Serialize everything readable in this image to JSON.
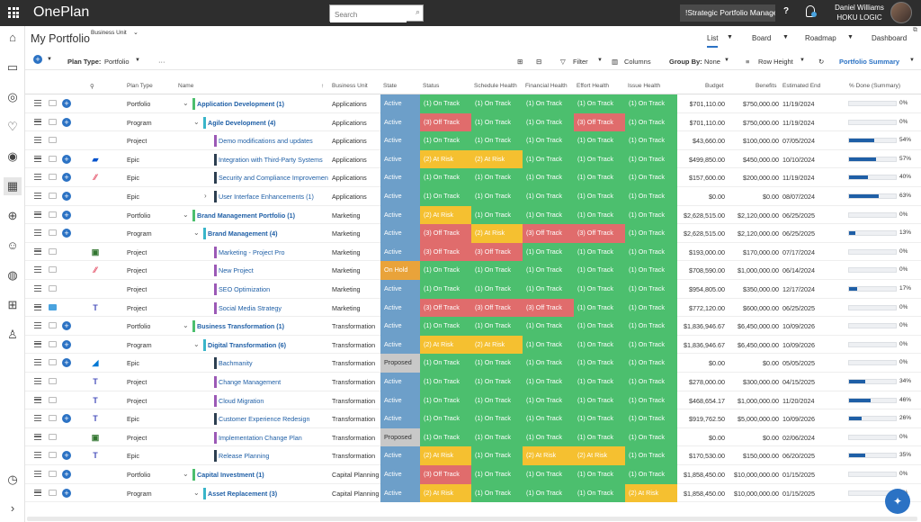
{
  "app": {
    "brand": "OnePlan"
  },
  "search": {
    "placeholder": "Search"
  },
  "role": {
    "label": "!Strategic Portfolio Manager"
  },
  "help_label": "?",
  "user": {
    "name": "Daniel Williams",
    "org": "HOKU LOGIC"
  },
  "header": {
    "title": "My Portfolio",
    "business_unit_label": "Business Unit",
    "views": [
      {
        "label": "List",
        "active": true
      },
      {
        "label": "Board",
        "active": false
      },
      {
        "label": "Roadmap",
        "active": false
      },
      {
        "label": "Dashboard",
        "active": false
      }
    ]
  },
  "toolbar": {
    "plan_type_label": "Plan Type:",
    "plan_type_value": "Portfolio",
    "more": "···",
    "filter": "Filter",
    "columns": "Columns",
    "group_by_label": "Group By:",
    "group_by_value": "None",
    "row_height": "Row Height",
    "summary": "Portfolio Summary"
  },
  "columns": [
    "Plan Type",
    "Name",
    "Business Unit",
    "State",
    "Status",
    "Schedule Health",
    "Financial Health",
    "Effort Health",
    "Issue Health",
    "Budget",
    "Benefits",
    "Estimated End",
    "% Done (Summary)"
  ],
  "colors": {
    "Active": "#6d9fc9",
    "On Hold": "#e9a33a",
    "Proposed": "#c8c8c8",
    "On Track": "#4cbf6e",
    "At Risk": "#f5c030",
    "Off Track": "#e06c6c",
    "accent": "#2b72c4"
  },
  "rows": [
    {
      "ptype": "Portfolio",
      "level": 0,
      "chev": "v",
      "name": "Application Development (1)",
      "bar": "#4cbf6e",
      "bu": "Applications",
      "state": "Active",
      "status": "(1) On Track",
      "sched": "(1) On Track",
      "fin": "(1) On Track",
      "effort": "(1) On Track",
      "issue": "(1) On Track",
      "budget": "$701,110.00",
      "benefits": "$750,000.00",
      "end": "11/19/2024",
      "pct": 0,
      "pct_label": "0%",
      "add": true,
      "logo": ""
    },
    {
      "ptype": "Program",
      "level": 1,
      "chev": "v",
      "name": "Agile Development (4)",
      "bar": "#39b5c9",
      "bu": "Applications",
      "state": "Active",
      "status": "(3) Off Track",
      "sched": "(1) On Track",
      "fin": "(1) On Track",
      "effort": "(3) Off Track",
      "issue": "(1) On Track",
      "budget": "$701,110.00",
      "benefits": "$750,000.00",
      "end": "11/19/2024",
      "pct": 0,
      "pct_label": "0%",
      "add": true,
      "logo": ""
    },
    {
      "ptype": "Project",
      "level": 2,
      "chev": "",
      "name": "Demo modifications and updates",
      "bar": "#9b59b6",
      "bu": "Applications",
      "state": "Active",
      "status": "(1) On Track",
      "sched": "(1) On Track",
      "fin": "(1) On Track",
      "effort": "(1) On Track",
      "issue": "(1) On Track",
      "budget": "$43,660.00",
      "benefits": "$100,000.00",
      "end": "07/05/2024",
      "pct": 54,
      "pct_label": "54%",
      "add": false,
      "logo": ""
    },
    {
      "ptype": "Epic",
      "level": 2,
      "chev": "",
      "name": "Integration with Third-Party Systems",
      "bar": "#2c3e50",
      "bu": "Applications",
      "state": "Active",
      "status": "(2) At Risk",
      "sched": "(2) At Risk",
      "fin": "(1) On Track",
      "effort": "(1) On Track",
      "issue": "(1) On Track",
      "budget": "$499,850.00",
      "benefits": "$450,000.00",
      "end": "10/10/2024",
      "pct": 57,
      "pct_label": "57%",
      "add": true,
      "logo": "jira"
    },
    {
      "ptype": "Epic",
      "level": 2,
      "chev": "",
      "name": "Security and Compliance Improvements",
      "bar": "#2c3e50",
      "bu": "Applications",
      "state": "Active",
      "status": "(1) On Track",
      "sched": "(1) On Track",
      "fin": "(1) On Track",
      "effort": "(1) On Track",
      "issue": "(1) On Track",
      "budget": "$157,600.00",
      "benefits": "$200,000.00",
      "end": "11/19/2024",
      "pct": 40,
      "pct_label": "40%",
      "add": true,
      "logo": "monday"
    },
    {
      "ptype": "Epic",
      "level": 2,
      "chev": ">",
      "name": "User Interface Enhancements (1)",
      "bar": "#2c3e50",
      "bu": "Applications",
      "state": "Active",
      "status": "(1) On Track",
      "sched": "(1) On Track",
      "fin": "(1) On Track",
      "effort": "(1) On Track",
      "issue": "(1) On Track",
      "budget": "$0.00",
      "benefits": "$0.00",
      "end": "08/07/2024",
      "pct": 63,
      "pct_label": "63%",
      "add": true,
      "logo": ""
    },
    {
      "ptype": "Portfolio",
      "level": 0,
      "chev": "v",
      "name": "Brand Management Portfolio (1)",
      "bar": "#4cbf6e",
      "bu": "Marketing",
      "state": "Active",
      "status": "(2) At Risk",
      "sched": "(1) On Track",
      "fin": "(1) On Track",
      "effort": "(1) On Track",
      "issue": "(1) On Track",
      "budget": "$2,628,515.00",
      "benefits": "$2,120,000.00",
      "end": "06/25/2025",
      "pct": 0,
      "pct_label": "0%",
      "add": true,
      "logo": ""
    },
    {
      "ptype": "Program",
      "level": 1,
      "chev": "v",
      "name": "Brand Management (4)",
      "bar": "#39b5c9",
      "bu": "Marketing",
      "state": "Active",
      "status": "(3) Off Track",
      "sched": "(2) At Risk",
      "fin": "(3) Off Track",
      "effort": "(3) Off Track",
      "issue": "(1) On Track",
      "budget": "$2,628,515.00",
      "benefits": "$2,120,000.00",
      "end": "06/25/2025",
      "pct": 13,
      "pct_label": "13%",
      "add": true,
      "logo": ""
    },
    {
      "ptype": "Project",
      "level": 2,
      "chev": "",
      "name": "Marketing - Project Pro",
      "bar": "#9b59b6",
      "bu": "Marketing",
      "state": "Active",
      "status": "(3) Off Track",
      "sched": "(3) Off Track",
      "fin": "(1) On Track",
      "effort": "(1) On Track",
      "issue": "(1) On Track",
      "budget": "$193,000.00",
      "benefits": "$170,000.00",
      "end": "07/17/2024",
      "pct": 0,
      "pct_label": "0%",
      "add": false,
      "logo": "planner"
    },
    {
      "ptype": "Project",
      "level": 2,
      "chev": "",
      "name": "New Project",
      "bar": "#9b59b6",
      "bu": "Marketing",
      "state": "On Hold",
      "status": "(1) On Track",
      "sched": "(1) On Track",
      "fin": "(1) On Track",
      "effort": "(1) On Track",
      "issue": "(1) On Track",
      "budget": "$708,590.00",
      "benefits": "$1,000,000.00",
      "end": "06/14/2024",
      "pct": 0,
      "pct_label": "0%",
      "add": false,
      "logo": "monday"
    },
    {
      "ptype": "Project",
      "level": 2,
      "chev": "",
      "name": "SEO Optimization",
      "bar": "#9b59b6",
      "bu": "Marketing",
      "state": "Active",
      "status": "(1) On Track",
      "sched": "(1) On Track",
      "fin": "(1) On Track",
      "effort": "(1) On Track",
      "issue": "(1) On Track",
      "budget": "$954,805.00",
      "benefits": "$350,000.00",
      "end": "12/17/2024",
      "pct": 17,
      "pct_label": "17%",
      "add": false,
      "logo": ""
    },
    {
      "ptype": "Project",
      "level": 2,
      "chev": "",
      "name": "Social Media Strategy",
      "bar": "#9b59b6",
      "bu": "Marketing",
      "state": "Active",
      "status": "(3) Off Track",
      "sched": "(3) Off Track",
      "fin": "(3) Off Track",
      "effort": "(1) On Track",
      "issue": "(1) On Track",
      "budget": "$772,120.00",
      "benefits": "$600,000.00",
      "end": "06/25/2025",
      "pct": 0,
      "pct_label": "0%",
      "add": false,
      "logo": "teams",
      "cmt_blue": true
    },
    {
      "ptype": "Portfolio",
      "level": 0,
      "chev": "v",
      "name": "Business Transformation (1)",
      "bar": "#4cbf6e",
      "bu": "Transformation",
      "state": "Active",
      "status": "(1) On Track",
      "sched": "(1) On Track",
      "fin": "(1) On Track",
      "effort": "(1) On Track",
      "issue": "(1) On Track",
      "budget": "$1,836,946.67",
      "benefits": "$6,450,000.00",
      "end": "10/09/2026",
      "pct": 0,
      "pct_label": "0%",
      "add": true,
      "logo": ""
    },
    {
      "ptype": "Program",
      "level": 1,
      "chev": "v",
      "name": "Digital Transformation (6)",
      "bar": "#39b5c9",
      "bu": "Transformation",
      "state": "Active",
      "status": "(2) At Risk",
      "sched": "(2) At Risk",
      "fin": "(1) On Track",
      "effort": "(1) On Track",
      "issue": "(1) On Track",
      "budget": "$1,836,946.67",
      "benefits": "$6,450,000.00",
      "end": "10/09/2026",
      "pct": 0,
      "pct_label": "0%",
      "add": true,
      "logo": ""
    },
    {
      "ptype": "Epic",
      "level": 2,
      "chev": "",
      "name": "Bachmanity",
      "bar": "#2c3e50",
      "bu": "Transformation",
      "state": "Proposed",
      "status": "(1) On Track",
      "sched": "(1) On Track",
      "fin": "(1) On Track",
      "effort": "(1) On Track",
      "issue": "(1) On Track",
      "budget": "$0.00",
      "benefits": "$0.00",
      "end": "05/05/2025",
      "pct": 0,
      "pct_label": "0%",
      "add": true,
      "logo": "azure"
    },
    {
      "ptype": "Project",
      "level": 2,
      "chev": "",
      "name": "Change Management",
      "bar": "#9b59b6",
      "bu": "Transformation",
      "state": "Active",
      "status": "(1) On Track",
      "sched": "(1) On Track",
      "fin": "(1) On Track",
      "effort": "(1) On Track",
      "issue": "(1) On Track",
      "budget": "$278,000.00",
      "benefits": "$300,000.00",
      "end": "04/15/2025",
      "pct": 34,
      "pct_label": "34%",
      "add": false,
      "logo": "teams"
    },
    {
      "ptype": "Project",
      "level": 2,
      "chev": "",
      "name": "Cloud Migration",
      "bar": "#9b59b6",
      "bu": "Transformation",
      "state": "Active",
      "status": "(1) On Track",
      "sched": "(1) On Track",
      "fin": "(1) On Track",
      "effort": "(1) On Track",
      "issue": "(1) On Track",
      "budget": "$468,654.17",
      "benefits": "$1,000,000.00",
      "end": "11/20/2024",
      "pct": 46,
      "pct_label": "46%",
      "add": false,
      "logo": "teams"
    },
    {
      "ptype": "Epic",
      "level": 2,
      "chev": "",
      "name": "Customer Experience Redesign",
      "bar": "#2c3e50",
      "bu": "Transformation",
      "state": "Active",
      "status": "(1) On Track",
      "sched": "(1) On Track",
      "fin": "(1) On Track",
      "effort": "(1) On Track",
      "issue": "(1) On Track",
      "budget": "$919,762.50",
      "benefits": "$5,000,000.00",
      "end": "10/09/2026",
      "pct": 26,
      "pct_label": "26%",
      "add": true,
      "logo": "teams"
    },
    {
      "ptype": "Project",
      "level": 2,
      "chev": "",
      "name": "Implementation Change Plan",
      "bar": "#9b59b6",
      "bu": "Transformation",
      "state": "Proposed",
      "status": "(1) On Track",
      "sched": "(1) On Track",
      "fin": "(1) On Track",
      "effort": "(1) On Track",
      "issue": "(1) On Track",
      "budget": "$0.00",
      "benefits": "$0.00",
      "end": "02/06/2024",
      "pct": 0,
      "pct_label": "0%",
      "add": false,
      "logo": "planner"
    },
    {
      "ptype": "Epic",
      "level": 2,
      "chev": "",
      "name": "Release Planning",
      "bar": "#2c3e50",
      "bu": "Transformation",
      "state": "Active",
      "status": "(2) At Risk",
      "sched": "(1) On Track",
      "fin": "(2) At Risk",
      "effort": "(2) At Risk",
      "issue": "(1) On Track",
      "budget": "$170,530.00",
      "benefits": "$150,000.00",
      "end": "06/20/2025",
      "pct": 35,
      "pct_label": "35%",
      "add": true,
      "logo": "teams"
    },
    {
      "ptype": "Portfolio",
      "level": 0,
      "chev": "v",
      "name": "Capital Investment (1)",
      "bar": "#4cbf6e",
      "bu": "Capital Planning",
      "state": "Active",
      "status": "(3) Off Track",
      "sched": "(1) On Track",
      "fin": "(1) On Track",
      "effort": "(1) On Track",
      "issue": "(1) On Track",
      "budget": "$1,858,450.00",
      "benefits": "$10,000,000.00",
      "end": "01/15/2025",
      "pct": 0,
      "pct_label": "0%",
      "add": true,
      "logo": ""
    },
    {
      "ptype": "Program",
      "level": 1,
      "chev": "v",
      "name": "Asset Replacement (3)",
      "bar": "#39b5c9",
      "bu": "Capital Planning",
      "state": "Active",
      "status": "(2) At Risk",
      "sched": "(1) On Track",
      "fin": "(1) On Track",
      "effort": "(1) On Track",
      "issue": "(2) At Risk",
      "budget": "$1,858,450.00",
      "benefits": "$10,000,000.00",
      "end": "01/15/2025",
      "pct": 0,
      "pct_label": "0%",
      "add": true,
      "logo": ""
    }
  ]
}
